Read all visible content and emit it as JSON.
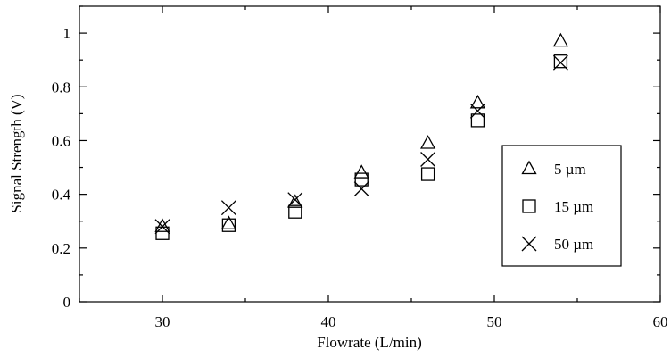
{
  "chart_data": {
    "type": "scatter",
    "title": "",
    "xlabel": "Flowrate (L/min)",
    "ylabel": "Signal Strength (V)",
    "xlim": [
      25,
      60
    ],
    "ylim": [
      0,
      1.1
    ],
    "xticks": [
      30,
      40,
      50,
      60
    ],
    "yticks": [
      0,
      0.2,
      0.4,
      0.6,
      0.8,
      1
    ],
    "x_minor_step": 5,
    "y_minor_step": 0.1,
    "grid": false,
    "legend_position": "right",
    "series": [
      {
        "name": "5 µm",
        "marker": "triangle",
        "x": [
          30,
          34,
          38,
          42,
          46,
          49,
          54
        ],
        "y": [
          0.28,
          0.29,
          0.37,
          0.48,
          0.59,
          0.74,
          0.97
        ]
      },
      {
        "name": "15 µm",
        "marker": "square",
        "x": [
          30,
          34,
          38,
          42,
          46,
          49,
          54
        ],
        "y": [
          0.255,
          0.285,
          0.335,
          0.455,
          0.475,
          0.675,
          0.895
        ]
      },
      {
        "name": "50 µm",
        "marker": "x",
        "x": [
          30,
          34,
          38,
          42,
          46,
          49,
          54
        ],
        "y": [
          0.28,
          0.35,
          0.38,
          0.42,
          0.53,
          0.71,
          0.89
        ]
      }
    ]
  }
}
